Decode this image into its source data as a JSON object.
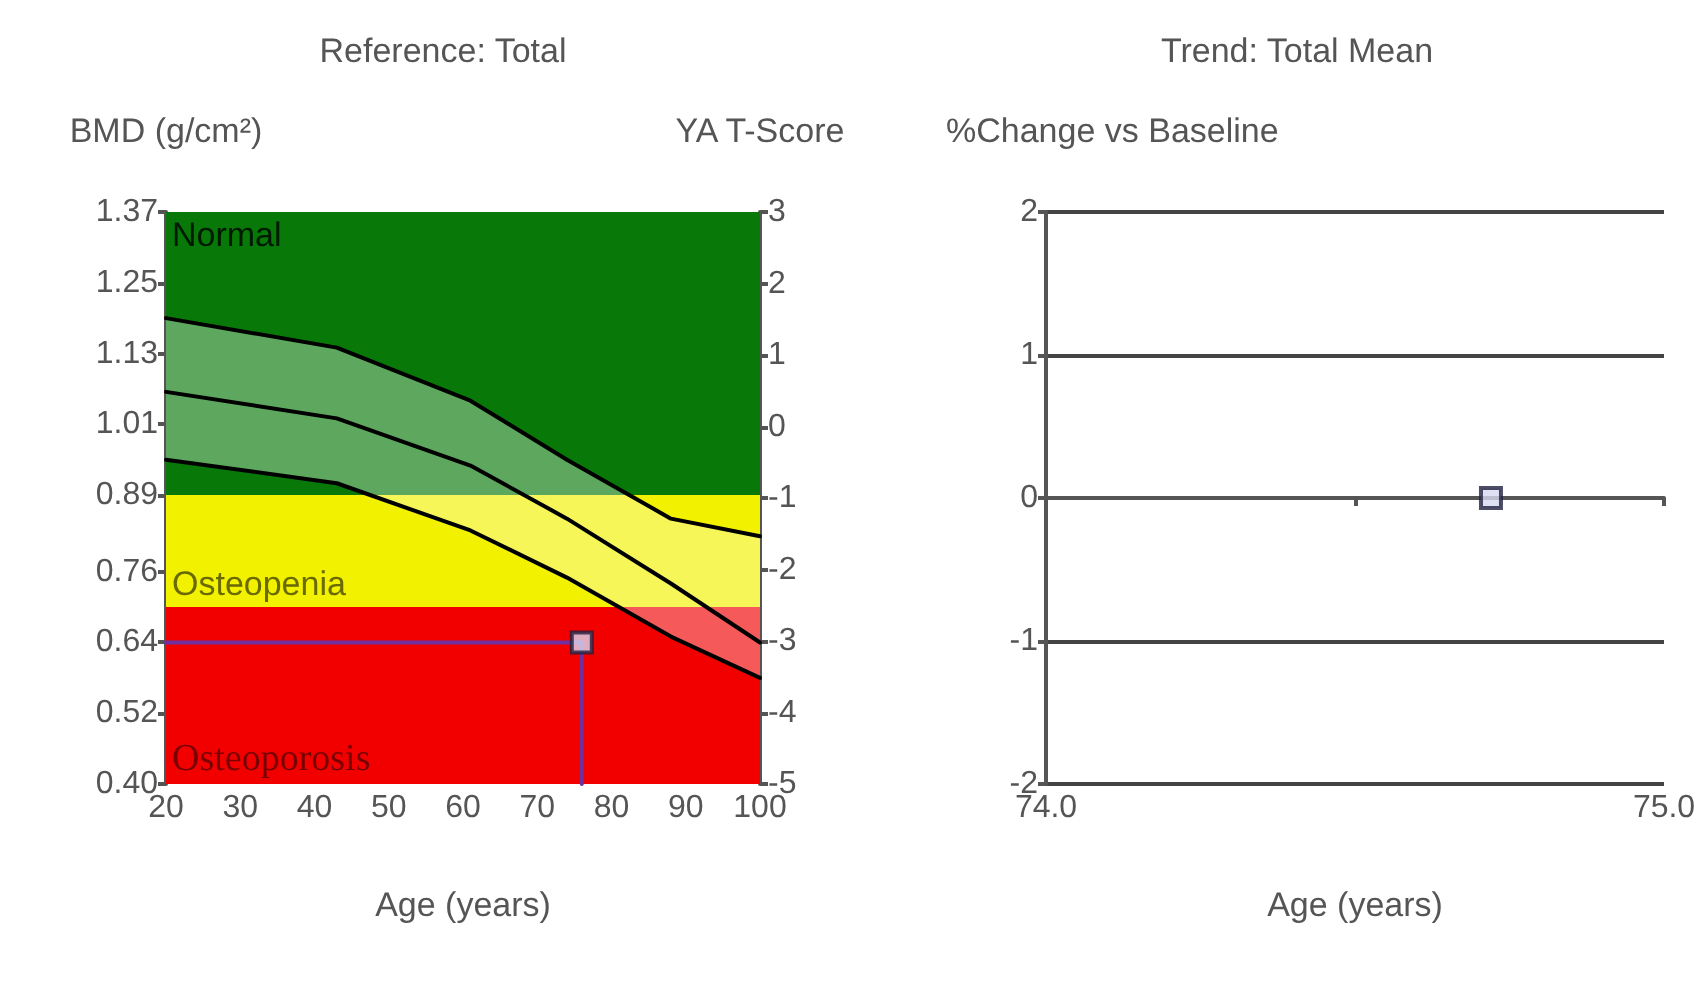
{
  "chart_data": [
    {
      "type": "line",
      "title": "Reference: Total",
      "ylabel": "BMD (g/cm²)",
      "y2label": "YA T-Score",
      "xlabel": "Age (years)",
      "xlim": [
        20,
        100
      ],
      "xticks": [
        20,
        30,
        40,
        50,
        60,
        70,
        80,
        90,
        100
      ],
      "ylim": [
        0.4,
        1.37
      ],
      "yticks": [
        {
          "value": 0.4,
          "label": "0.40"
        },
        0.52,
        0.64,
        0.76,
        0.89,
        1.01,
        1.13,
        1.25,
        1.37
      ],
      "y2lim": [
        -5,
        3
      ],
      "y2ticks": [
        -5,
        -4,
        -3,
        -2,
        -1,
        0,
        1,
        2,
        3
      ],
      "grid": false,
      "marker": "none",
      "bands": [
        {
          "axis": "y",
          "from": 0.89,
          "to": 1.37,
          "label": "Normal",
          "color": "#087808"
        },
        {
          "axis": "y",
          "from": 0.7,
          "to": 0.89,
          "label": "Osteopenia",
          "color": "#f2f200"
        },
        {
          "axis": "y",
          "from": 0.4,
          "to": 0.7,
          "label": "Osteoporosis",
          "color": "#f20000"
        }
      ],
      "series": [
        {
          "color": "#000000",
          "x": [
            20,
            43,
            61,
            74,
            88,
            100
          ],
          "values": [
            1.065,
            1.02,
            0.94,
            0.85,
            0.74,
            0.64
          ],
          "lower": [
            0.95,
            0.91,
            0.83,
            0.75,
            0.65,
            0.58
          ],
          "upper": [
            1.19,
            1.14,
            1.05,
            0.95,
            0.85,
            0.82
          ]
        },
        {
          "color": "#000000",
          "x": [
            20,
            43,
            61,
            74,
            88,
            100
          ],
          "values": [
            1.19,
            1.14,
            1.05,
            0.95,
            0.85,
            0.82
          ]
        },
        {
          "color": "#000000",
          "x": [
            20,
            43,
            61,
            74,
            88,
            100
          ],
          "values": [
            0.95,
            0.91,
            0.83,
            0.75,
            0.65,
            0.58
          ]
        },
        {
          "color": "#7030a0",
          "x": [
            20,
            76,
            76
          ],
          "values": [
            0.64,
            0.64,
            0.4
          ]
        },
        {
          "type": "scatter",
          "color": "#d8d8f0",
          "marker": "square",
          "x": [
            76
          ],
          "values": [
            0.64
          ]
        }
      ]
    },
    {
      "type": "scatter",
      "title": "Trend: Total Mean",
      "ylabel": "%Change vs Baseline",
      "xlabel": "Age (years)",
      "xlim": [
        74,
        75
      ],
      "xticks": [
        {
          "value": 74,
          "label": "74.0"
        },
        {
          "value": 74.5,
          "label": null
        },
        {
          "value": 75,
          "label": "75.0"
        }
      ],
      "ylim": [
        -2,
        2
      ],
      "yticks": [
        -2,
        -1,
        0,
        1,
        2
      ],
      "grid": "y",
      "marker": "square",
      "series": [
        {
          "color": "#d8d8f0",
          "x": [
            74.72
          ],
          "values": [
            0
          ]
        }
      ]
    }
  ]
}
